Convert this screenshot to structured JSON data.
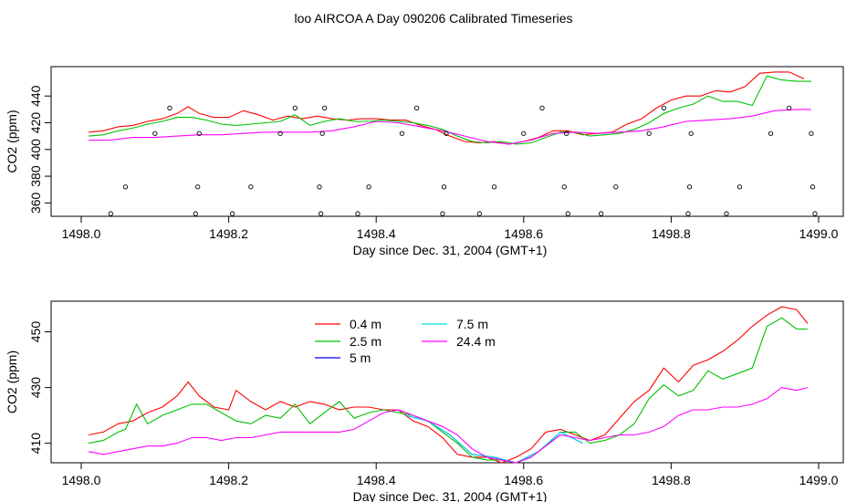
{
  "title": "loo AIRCOA A  Day 090206  Calibrated Timeseries",
  "chart_data": [
    {
      "type": "line",
      "xlabel": "Day since Dec. 31, 2004 (GMT+1)",
      "ylabel": "CO2 (ppm)",
      "xlim": [
        1498.0,
        1499.0
      ],
      "ylim": [
        350,
        462
      ],
      "xticks": [
        "1498.0",
        "1498.2",
        "1498.4",
        "1498.6",
        "1498.8",
        "1499.0"
      ],
      "yticks": [
        "360",
        "380",
        "400",
        "420",
        "440"
      ],
      "legend": "none",
      "series": [
        {
          "name": "0.4 m",
          "color": "#ff0000",
          "x": [
            1498.01,
            1498.03,
            1498.05,
            1498.07,
            1498.09,
            1498.11,
            1498.13,
            1498.145,
            1498.16,
            1498.18,
            1498.2,
            1498.22,
            1498.24,
            1498.26,
            1498.28,
            1498.3,
            1498.32,
            1498.34,
            1498.36,
            1498.38,
            1498.4,
            1498.42,
            1498.44,
            1498.46,
            1498.48,
            1498.5,
            1498.52,
            1498.54,
            1498.56,
            1498.58,
            1498.6,
            1498.62,
            1498.64,
            1498.66,
            1498.68,
            1498.7,
            1498.72,
            1498.74,
            1498.76,
            1498.78,
            1498.8,
            1498.82,
            1498.84,
            1498.86,
            1498.88,
            1498.9,
            1498.92,
            1498.94,
            1498.96,
            1498.98
          ],
          "y": [
            413,
            414,
            417,
            418,
            421,
            423,
            427,
            432,
            427,
            424,
            424,
            429,
            426,
            422,
            425,
            423,
            425,
            423,
            422,
            423,
            423,
            422,
            422,
            418,
            415,
            410,
            406,
            405,
            406,
            404,
            406,
            409,
            414,
            414,
            411,
            412,
            413,
            419,
            423,
            431,
            437,
            440,
            440,
            444,
            443,
            447,
            457,
            458,
            458,
            453
          ]
        },
        {
          "name": "2.5 m",
          "color": "#00c000",
          "x": [
            1498.01,
            1498.03,
            1498.05,
            1498.07,
            1498.09,
            1498.11,
            1498.13,
            1498.15,
            1498.17,
            1498.19,
            1498.21,
            1498.23,
            1498.25,
            1498.27,
            1498.29,
            1498.31,
            1498.33,
            1498.35,
            1498.37,
            1498.39,
            1498.41,
            1498.43,
            1498.45,
            1498.47,
            1498.49,
            1498.51,
            1498.53,
            1498.55,
            1498.57,
            1498.59,
            1498.61,
            1498.63,
            1498.65,
            1498.67,
            1498.69,
            1498.71,
            1498.73,
            1498.75,
            1498.77,
            1498.79,
            1498.81,
            1498.83,
            1498.85,
            1498.87,
            1498.89,
            1498.91,
            1498.93,
            1498.95,
            1498.97,
            1498.99
          ],
          "y": [
            410,
            411,
            414,
            416,
            419,
            421,
            424,
            424,
            422,
            419,
            418,
            419,
            420,
            421,
            426,
            418,
            421,
            423,
            421,
            421,
            422,
            421,
            420,
            418,
            415,
            410,
            406,
            405,
            406,
            404,
            405,
            409,
            413,
            413,
            410,
            411,
            412,
            415,
            420,
            427,
            431,
            434,
            440,
            436,
            436,
            433,
            455,
            452,
            451,
            451
          ]
        },
        {
          "name": "24.4 m",
          "color": "#ff00ff",
          "x": [
            1498.01,
            1498.04,
            1498.07,
            1498.1,
            1498.13,
            1498.16,
            1498.19,
            1498.22,
            1498.25,
            1498.28,
            1498.31,
            1498.34,
            1498.37,
            1498.4,
            1498.43,
            1498.46,
            1498.49,
            1498.52,
            1498.55,
            1498.58,
            1498.61,
            1498.64,
            1498.67,
            1498.7,
            1498.73,
            1498.76,
            1498.79,
            1498.82,
            1498.85,
            1498.88,
            1498.91,
            1498.94,
            1498.97,
            1498.99
          ],
          "y": [
            407,
            407,
            409,
            409,
            410,
            411,
            411,
            412,
            413,
            413,
            413,
            414,
            417,
            421,
            420,
            417,
            414,
            410,
            406,
            404,
            407,
            412,
            413,
            412,
            413,
            414,
            417,
            421,
            422,
            423,
            425,
            429,
            430,
            430
          ]
        }
      ],
      "markers": {
        "name": "points",
        "color": "#000000",
        "x": [
          1498.04,
          1498.06,
          1498.1,
          1498.12,
          1498.155,
          1498.158,
          1498.16,
          1498.205,
          1498.23,
          1498.27,
          1498.29,
          1498.323,
          1498.325,
          1498.327,
          1498.33,
          1498.375,
          1498.39,
          1498.435,
          1498.455,
          1498.49,
          1498.492,
          1498.495,
          1498.54,
          1498.56,
          1498.6,
          1498.625,
          1498.655,
          1498.658,
          1498.66,
          1498.705,
          1498.725,
          1498.77,
          1498.79,
          1498.823,
          1498.825,
          1498.827,
          1498.875,
          1498.893,
          1498.935,
          1498.96,
          1498.99,
          1498.992,
          1498.995
        ],
        "y": [
          352,
          372,
          412,
          431,
          352,
          372,
          412,
          352,
          372,
          412,
          431,
          372,
          352,
          412,
          431,
          352,
          372,
          412,
          431,
          352,
          372,
          412,
          352,
          372,
          412,
          431,
          372,
          412,
          352,
          352,
          372,
          412,
          431,
          352,
          372,
          412,
          352,
          372,
          412,
          431,
          412,
          372,
          352
        ]
      }
    },
    {
      "type": "line",
      "xlabel": "Day since Dec. 31, 2004 (GMT+1)",
      "ylabel": "CO2 (ppm)",
      "xlim": [
        1498.0,
        1499.0
      ],
      "ylim": [
        403,
        461
      ],
      "xticks": [
        "1498.0",
        "1498.2",
        "1498.4",
        "1498.6",
        "1498.8",
        "1499.0"
      ],
      "yticks": [
        "410",
        "430",
        "450"
      ],
      "legend": "top-left",
      "legend_entries": [
        {
          "label": "0.4 m",
          "color": "#ff0000"
        },
        {
          "label": "2.5 m",
          "color": "#00c000"
        },
        {
          "label": "5 m",
          "color": "#0000ff"
        },
        {
          "label": "7.5 m",
          "color": "#00e0e0"
        },
        {
          "label": "24.4 m",
          "color": "#ff00ff"
        }
      ],
      "series": [
        {
          "name": "0.4 m",
          "color": "#ff0000",
          "x": [
            1498.01,
            1498.03,
            1498.05,
            1498.07,
            1498.09,
            1498.11,
            1498.13,
            1498.145,
            1498.16,
            1498.18,
            1498.2,
            1498.21,
            1498.23,
            1498.25,
            1498.27,
            1498.29,
            1498.31,
            1498.33,
            1498.35,
            1498.37,
            1498.39,
            1498.41,
            1498.43,
            1498.45,
            1498.47,
            1498.49,
            1498.51,
            1498.53,
            1498.55,
            1498.57,
            1498.59,
            1498.61,
            1498.63,
            1498.65,
            1498.67,
            1498.69,
            1498.71,
            1498.73,
            1498.75,
            1498.77,
            1498.79,
            1498.81,
            1498.83,
            1498.85,
            1498.87,
            1498.89,
            1498.91,
            1498.93,
            1498.95,
            1498.97,
            1498.985
          ],
          "y": [
            413,
            414,
            417,
            418,
            421,
            423,
            427,
            432,
            427,
            423,
            422,
            429,
            425,
            422,
            425,
            423,
            425,
            424,
            422,
            423,
            423,
            422,
            422,
            418,
            416,
            412,
            406,
            405,
            405,
            403,
            405,
            408,
            414,
            415,
            413,
            411,
            413,
            419,
            425,
            429,
            437,
            432,
            438,
            440,
            443,
            447,
            452,
            456,
            459,
            458,
            453
          ]
        },
        {
          "name": "2.5 m",
          "color": "#00c000",
          "x": [
            1498.01,
            1498.03,
            1498.05,
            1498.06,
            1498.075,
            1498.09,
            1498.11,
            1498.13,
            1498.15,
            1498.17,
            1498.19,
            1498.21,
            1498.23,
            1498.25,
            1498.27,
            1498.29,
            1498.31,
            1498.33,
            1498.35,
            1498.37,
            1498.39,
            1498.41,
            1498.43,
            1498.45,
            1498.47,
            1498.49,
            1498.51,
            1498.53,
            1498.55,
            1498.57,
            1498.59,
            1498.61,
            1498.63,
            1498.65,
            1498.67,
            1498.69,
            1498.71,
            1498.73,
            1498.75,
            1498.77,
            1498.79,
            1498.81,
            1498.83,
            1498.85,
            1498.87,
            1498.89,
            1498.91,
            1498.93,
            1498.95,
            1498.97,
            1498.985
          ],
          "y": [
            410,
            411,
            414,
            415,
            424,
            417,
            420,
            422,
            424,
            424,
            421,
            418,
            417,
            420,
            419,
            424,
            417,
            421,
            425,
            419,
            421,
            422,
            421,
            420,
            418,
            414,
            410,
            405,
            404,
            404,
            403,
            405,
            409,
            414,
            414,
            410,
            411,
            413,
            417,
            426,
            431,
            427,
            429,
            436,
            433,
            435,
            437,
            452,
            455,
            451,
            451
          ]
        },
        {
          "name": "5 m",
          "color": "#0000ff",
          "x": [
            1498.44,
            1498.47,
            1498.5,
            1498.53,
            1498.56,
            1498.59,
            1498.62,
            1498.65,
            1498.68
          ],
          "y": [
            420,
            418,
            413,
            406,
            405,
            403,
            407,
            414,
            410
          ]
        },
        {
          "name": "7.5 m",
          "color": "#00e0e0",
          "x": [
            1498.44,
            1498.47,
            1498.5,
            1498.53,
            1498.56,
            1498.59,
            1498.62,
            1498.65,
            1498.68
          ],
          "y": [
            420,
            418,
            413,
            406,
            405,
            403,
            407,
            414,
            410
          ]
        },
        {
          "name": "24.4 m",
          "color": "#ff00ff",
          "x": [
            1498.01,
            1498.03,
            1498.05,
            1498.07,
            1498.09,
            1498.11,
            1498.13,
            1498.15,
            1498.17,
            1498.19,
            1498.21,
            1498.23,
            1498.25,
            1498.27,
            1498.29,
            1498.31,
            1498.33,
            1498.35,
            1498.37,
            1498.39,
            1498.41,
            1498.43,
            1498.45,
            1498.47,
            1498.49,
            1498.51,
            1498.53,
            1498.55,
            1498.57,
            1498.59,
            1498.61,
            1498.63,
            1498.65,
            1498.67,
            1498.69,
            1498.71,
            1498.73,
            1498.75,
            1498.77,
            1498.79,
            1498.81,
            1498.83,
            1498.85,
            1498.87,
            1498.89,
            1498.91,
            1498.93,
            1498.95,
            1498.97,
            1498.985
          ],
          "y": [
            407,
            406,
            407,
            408,
            409,
            409,
            410,
            412,
            412,
            411,
            412,
            412,
            413,
            414,
            414,
            414,
            414,
            414,
            415,
            418,
            421,
            422,
            420,
            418,
            416,
            413,
            408,
            405,
            404,
            403,
            405,
            409,
            413,
            412,
            411,
            412,
            413,
            413,
            414,
            416,
            420,
            422,
            422,
            423,
            423,
            424,
            426,
            430,
            429,
            430
          ]
        }
      ]
    }
  ]
}
